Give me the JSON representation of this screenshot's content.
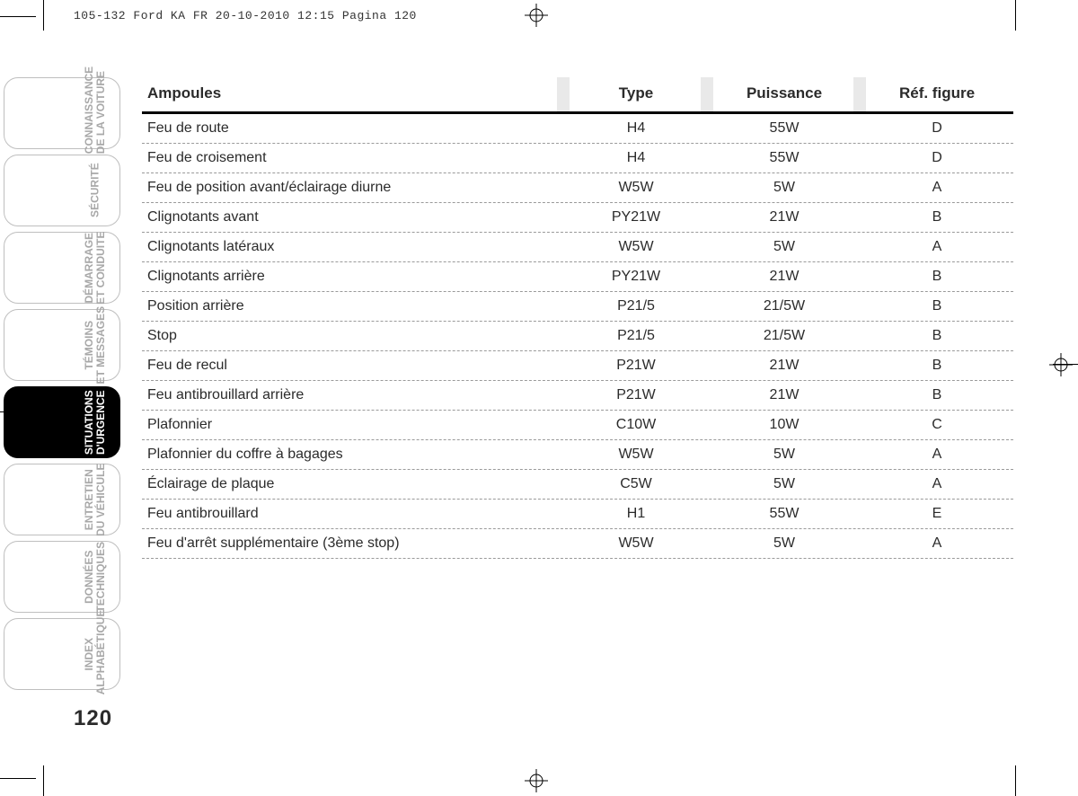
{
  "header": "105-132 Ford KA FR  20-10-2010  12:15  Pagina 120",
  "page_number": "120",
  "tabs": [
    {
      "label": "CONNAISSANCE\nDE LA VOITURE",
      "active": false
    },
    {
      "label": "SÉCURITÉ",
      "active": false
    },
    {
      "label": "DÉMARRAGE\nET CONDUITE",
      "active": false
    },
    {
      "label": "TÉMOINS\nET MESSAGES",
      "active": false
    },
    {
      "label": "SITUATIONS\nD'URGENCE",
      "active": true
    },
    {
      "label": "ENTRETIEN\nDU VÉHICULE",
      "active": false
    },
    {
      "label": "DONNÉES\nTECHNIQUES",
      "active": false
    },
    {
      "label": "INDEX\nALPHABÉTIQUE",
      "active": false
    }
  ],
  "table": {
    "columns": [
      "Ampoules",
      "Type",
      "Puissance",
      "Réf. figure"
    ],
    "rows": [
      [
        "Feu de route",
        "H4",
        "55W",
        "D"
      ],
      [
        "Feu de croisement",
        "H4",
        "55W",
        "D"
      ],
      [
        "Feu de position avant/éclairage diurne",
        "W5W",
        "5W",
        "A"
      ],
      [
        "Clignotants avant",
        "PY21W",
        "21W",
        "B"
      ],
      [
        "Clignotants latéraux",
        "W5W",
        "5W",
        "A"
      ],
      [
        "Clignotants arrière",
        "PY21W",
        "21W",
        "B"
      ],
      [
        "Position arrière",
        "P21/5",
        "21/5W",
        "B"
      ],
      [
        "Stop",
        "P21/5",
        "21/5W",
        "B"
      ],
      [
        "Feu de recul",
        "P21W",
        "21W",
        "B"
      ],
      [
        "Feu antibrouillard arrière",
        "P21W",
        "21W",
        "B"
      ],
      [
        "Plafonnier",
        "C10W",
        "10W",
        "C"
      ],
      [
        "Plafonnier du coffre à bagages",
        "W5W",
        "5W",
        "A"
      ],
      [
        "Éclairage de plaque",
        "C5W",
        "5W",
        "A"
      ],
      [
        "Feu antibrouillard",
        "H1",
        "55W",
        "E"
      ],
      [
        "Feu d'arrêt supplémentaire (3ème stop)",
        "W5W",
        "5W",
        "A"
      ]
    ]
  },
  "style": {
    "row_font_size": 16,
    "header_font_size": 17,
    "divider_color": "#9a9a9a",
    "tab_inactive_text": "#a8a8a8",
    "tab_active_bg": "#000000",
    "col_sep_bg": "#e9e9e9"
  }
}
